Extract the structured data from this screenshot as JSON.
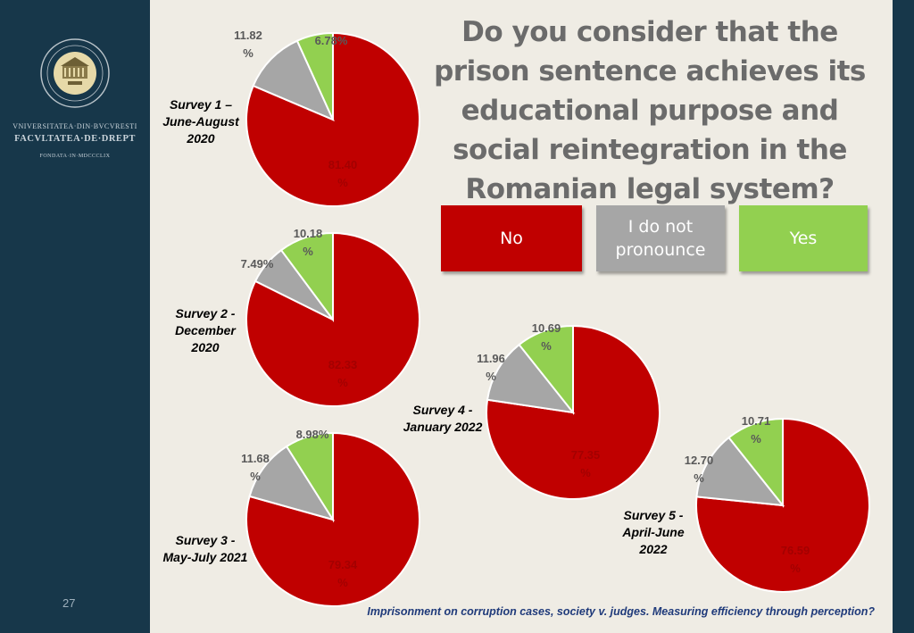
{
  "sidebar": {
    "university_line": "VNIVERSITATEA·DIN·BVCVRESTI",
    "faculty_line": "FACVLTATEA·DE·DREPT",
    "founded_line": "FONDATA·IN·MDCCCLIX",
    "page_number": "27"
  },
  "title": "Do you consider that the prison sentence achieves its educational purpose and social reintegration in the Romanian legal system?",
  "legend": {
    "no": "No",
    "idk": "I do not pronounce",
    "yes": "Yes"
  },
  "colors": {
    "No": "#c00000",
    "I do not pronounce": "#a6a6a6",
    "Yes": "#92d050",
    "sidebar": "#17374a",
    "background": "#efece4"
  },
  "chart_data": [
    {
      "type": "pie",
      "title": "Survey 1 – June-August 2020",
      "slices": [
        {
          "label": "No",
          "value": 81.4,
          "text": "81.40 %"
        },
        {
          "label": "I do not pronounce",
          "value": 11.82,
          "text": "11.82 %"
        },
        {
          "label": "Yes",
          "value": 6.78,
          "text": "6.78%"
        }
      ]
    },
    {
      "type": "pie",
      "title": "Survey 2 - December 2020",
      "slices": [
        {
          "label": "No",
          "value": 82.33,
          "text": "82.33 %"
        },
        {
          "label": "I do not pronounce",
          "value": 7.49,
          "text": "7.49%"
        },
        {
          "label": "Yes",
          "value": 10.18,
          "text": "10.18 %"
        }
      ]
    },
    {
      "type": "pie",
      "title": "Survey 3 - May-July 2021",
      "slices": [
        {
          "label": "No",
          "value": 79.34,
          "text": "79.34 %"
        },
        {
          "label": "I do not pronounce",
          "value": 11.68,
          "text": "11.68 %"
        },
        {
          "label": "Yes",
          "value": 8.98,
          "text": "8.98%"
        }
      ]
    },
    {
      "type": "pie",
      "title": "Survey 4 - January 2022",
      "slices": [
        {
          "label": "No",
          "value": 77.35,
          "text": "77.35 %"
        },
        {
          "label": "I do not pronounce",
          "value": 11.96,
          "text": "11.96 %"
        },
        {
          "label": "Yes",
          "value": 10.69,
          "text": "10.69 %"
        }
      ]
    },
    {
      "type": "pie",
      "title": "Survey 5 - April-June 2022",
      "slices": [
        {
          "label": "No",
          "value": 76.59,
          "text": "76.59 %"
        },
        {
          "label": "I do not pronounce",
          "value": 12.7,
          "text": "12.70 %"
        },
        {
          "label": "Yes",
          "value": 10.71,
          "text": "10.71 %"
        }
      ]
    }
  ],
  "survey_labels": [
    "Survey 1 – June-August 2020",
    "Survey 2 - December 2020",
    "Survey 3 - May-July 2021",
    "Survey 4 - January 2022",
    "Survey 5 - April-June 2022"
  ],
  "footer_caption": "Imprisonment on corruption cases, society v. judges. Measuring efficiency through perception?"
}
